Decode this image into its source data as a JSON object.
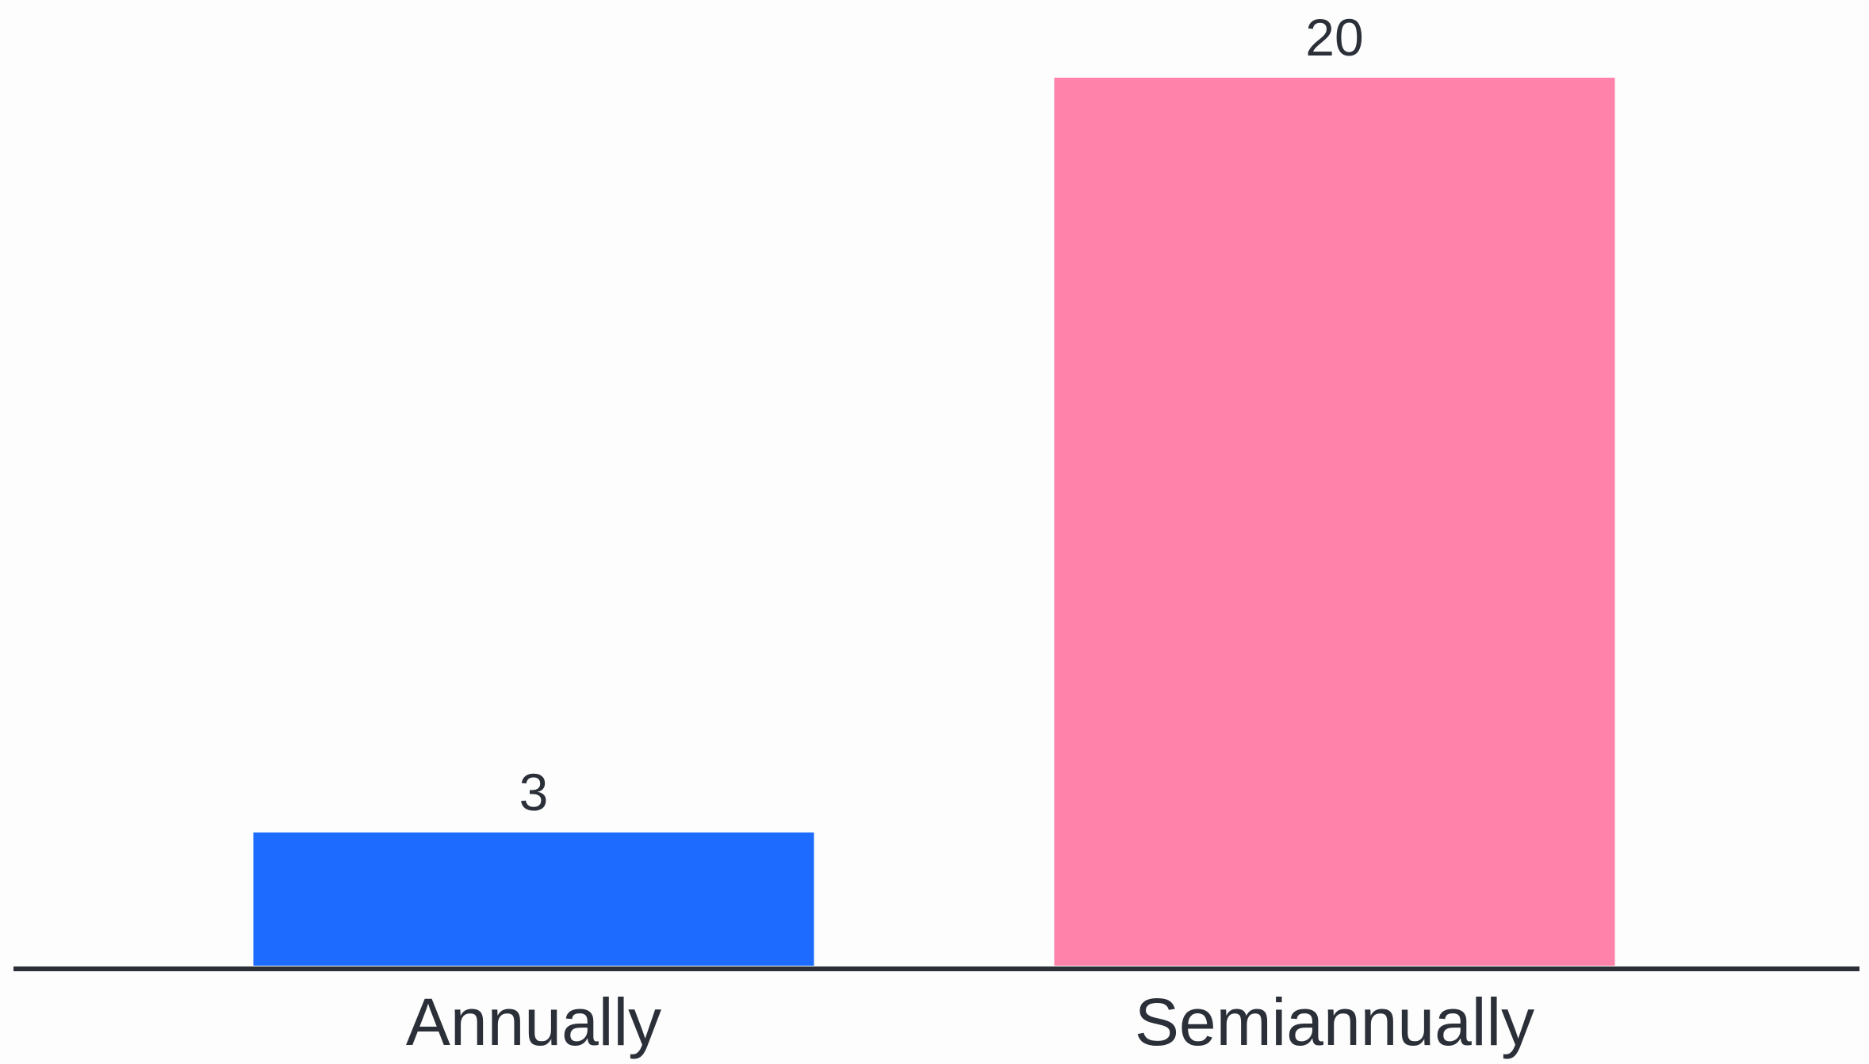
{
  "chart_data": {
    "type": "bar",
    "categories": [
      "Annually",
      "Semiannually"
    ],
    "values": [
      3,
      20
    ],
    "colors": [
      "#1d6bff",
      "#ff82aa"
    ],
    "axis_color": "#2b2f38",
    "title": "",
    "xlabel": "",
    "ylabel": "",
    "ylim": [
      0,
      20
    ],
    "grid": false,
    "legend": "none",
    "data_labels": true
  }
}
